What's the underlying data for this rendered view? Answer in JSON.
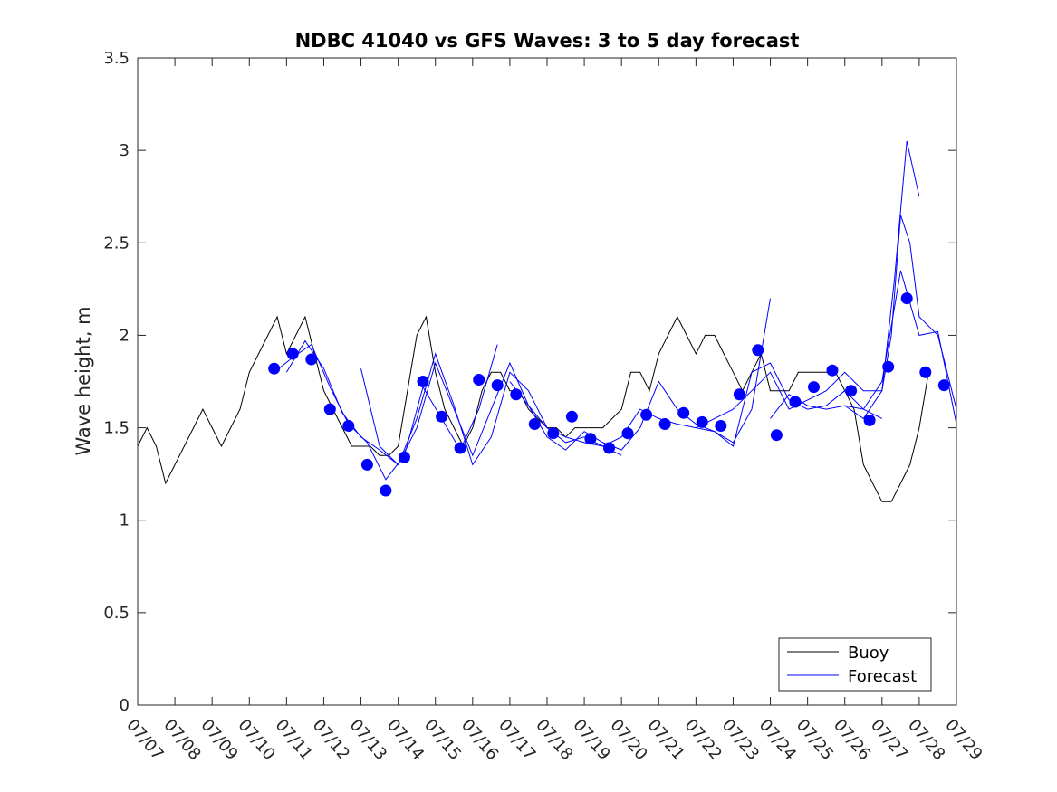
{
  "chart_data": {
    "type": "line",
    "title": "NDBC 41040 vs GFS Waves: 3 to 5 day forecast",
    "xlabel": "",
    "ylabel": "Wave height, m",
    "xlim": [
      "07/07",
      "07/29"
    ],
    "ylim": [
      0,
      3.5
    ],
    "x_ticks": [
      "07/07",
      "07/08",
      "07/09",
      "07/10",
      "07/11",
      "07/12",
      "07/13",
      "07/14",
      "07/15",
      "07/16",
      "07/17",
      "07/18",
      "07/19",
      "07/20",
      "07/21",
      "07/22",
      "07/23",
      "07/24",
      "07/25",
      "07/26",
      "07/27",
      "07/28",
      "07/29"
    ],
    "y_ticks": [
      "0",
      "0.5",
      "1",
      "1.5",
      "2",
      "2.5",
      "3",
      "3.5"
    ],
    "grid": false,
    "legend_position": "bottom-right",
    "series": [
      {
        "name": "Buoy",
        "color": "#000000",
        "x": [
          "07/07 00:00",
          "07/07 06:00",
          "07/07 12:00",
          "07/07 18:00",
          "07/08 00:00",
          "07/08 06:00",
          "07/08 12:00",
          "07/08 18:00",
          "07/09 00:00",
          "07/09 06:00",
          "07/09 12:00",
          "07/09 18:00",
          "07/10 00:00",
          "07/10 06:00",
          "07/10 12:00",
          "07/10 18:00",
          "07/11 00:00",
          "07/11 06:00",
          "07/11 12:00",
          "07/11 18:00",
          "07/12 00:00",
          "07/12 06:00",
          "07/12 12:00",
          "07/12 18:00",
          "07/13 00:00",
          "07/13 06:00",
          "07/13 12:00",
          "07/13 18:00",
          "07/14 00:00",
          "07/14 06:00",
          "07/14 12:00",
          "07/14 18:00",
          "07/15 00:00",
          "07/15 06:00",
          "07/15 12:00",
          "07/15 18:00",
          "07/16 00:00",
          "07/16 06:00",
          "07/16 12:00",
          "07/16 18:00",
          "07/17 00:00",
          "07/17 06:00",
          "07/17 12:00",
          "07/17 18:00",
          "07/18 00:00",
          "07/18 06:00",
          "07/18 12:00",
          "07/18 18:00",
          "07/19 00:00",
          "07/19 06:00",
          "07/19 12:00",
          "07/19 18:00",
          "07/20 00:00",
          "07/20 06:00",
          "07/20 12:00",
          "07/20 18:00",
          "07/21 00:00",
          "07/21 06:00",
          "07/21 12:00",
          "07/21 18:00",
          "07/22 00:00",
          "07/22 06:00",
          "07/22 12:00",
          "07/22 18:00",
          "07/23 00:00",
          "07/23 06:00",
          "07/23 12:00",
          "07/23 18:00",
          "07/24 00:00",
          "07/24 06:00",
          "07/24 12:00",
          "07/24 18:00",
          "07/25 00:00",
          "07/25 06:00",
          "07/25 12:00",
          "07/25 18:00",
          "07/26 00:00",
          "07/26 06:00",
          "07/26 12:00",
          "07/26 18:00",
          "07/27 00:00",
          "07/27 06:00",
          "07/27 12:00",
          "07/27 18:00",
          "07/28 00:00",
          "07/28 06:00"
        ],
        "values": [
          1.4,
          1.5,
          1.4,
          1.2,
          1.3,
          1.4,
          1.5,
          1.6,
          1.5,
          1.4,
          1.5,
          1.6,
          1.8,
          1.9,
          2.0,
          2.1,
          1.9,
          2.0,
          2.1,
          1.9,
          1.7,
          1.6,
          1.5,
          1.4,
          1.4,
          1.4,
          1.35,
          1.35,
          1.4,
          1.7,
          2.0,
          2.1,
          1.8,
          1.6,
          1.5,
          1.4,
          1.5,
          1.7,
          1.8,
          1.8,
          1.7,
          1.7,
          1.6,
          1.55,
          1.5,
          1.5,
          1.45,
          1.5,
          1.5,
          1.5,
          1.5,
          1.55,
          1.6,
          1.8,
          1.8,
          1.7,
          1.9,
          2.0,
          2.1,
          2.0,
          1.9,
          2.0,
          2.0,
          1.9,
          1.8,
          1.7,
          1.8,
          1.9,
          1.7,
          1.7,
          1.7,
          1.8,
          1.8,
          1.8,
          1.8,
          1.8,
          1.7,
          1.6,
          1.3,
          1.2,
          1.1,
          1.1,
          1.2,
          1.3,
          1.5,
          1.8
        ]
      },
      {
        "name": "Forecast",
        "color": "#0000ff",
        "runs": [
          {
            "x": [
              "07/10 16:00",
              "07/11 04:00",
              "07/11 16:00",
              "07/12 04:00",
              "07/12 16:00",
              "07/13 04:00",
              "07/13 16:00",
              "07/14 04:00",
              "07/14 16:00",
              "07/15 04:00",
              "07/15 16:00",
              "07/16 04:00",
              "07/16 16:00"
            ],
            "values": [
              1.8,
              1.88,
              1.95,
              1.72,
              1.52,
              1.42,
              1.22,
              1.35,
              1.72,
              1.55,
              1.38,
              1.6,
              1.95
            ]
          },
          {
            "x": [
              "07/11 00:00",
              "07/11 12:00",
              "07/12 00:00",
              "07/12 12:00",
              "07/13 00:00",
              "07/13 12:00",
              "07/14 00:00",
              "07/14 12:00",
              "07/15 00:00",
              "07/15 12:00",
              "07/16 00:00",
              "07/16 12:00",
              "07/17 00:00",
              "07/17 12:00",
              "07/18 00:00",
              "07/18 12:00",
              "07/19 00:00",
              "07/19 12:00",
              "07/20 00:00"
            ],
            "values": [
              1.8,
              1.97,
              1.82,
              1.58,
              1.45,
              1.38,
              1.3,
              1.55,
              1.9,
              1.62,
              1.3,
              1.45,
              1.8,
              1.7,
              1.5,
              1.42,
              1.45,
              1.4,
              1.35
            ]
          },
          {
            "x": [
              "07/13 00:00",
              "07/13 12:00",
              "07/14 00:00",
              "07/14 12:00",
              "07/15 00:00",
              "07/15 12:00",
              "07/16 00:00",
              "07/16 12:00",
              "07/17 00:00",
              "07/17 12:00",
              "07/18 00:00",
              "07/18 12:00",
              "07/19 00:00",
              "07/19 12:00",
              "07/20 00:00",
              "07/20 12:00",
              "07/21 00:00",
              "07/21 12:00",
              "07/22 00:00",
              "07/22 12:00",
              "07/23 00:00",
              "07/23 12:00",
              "07/24 00:00"
            ],
            "values": [
              1.82,
              1.4,
              1.3,
              1.5,
              1.85,
              1.6,
              1.35,
              1.6,
              1.85,
              1.62,
              1.45,
              1.38,
              1.48,
              1.42,
              1.38,
              1.5,
              1.75,
              1.6,
              1.52,
              1.48,
              1.42,
              1.6,
              2.2
            ]
          },
          {
            "x": [
              "07/17 00:00",
              "07/17 12:00",
              "07/18 00:00",
              "07/18 12:00",
              "07/19 00:00",
              "07/19 12:00",
              "07/20 00:00",
              "07/20 12:00",
              "07/21 00:00",
              "07/21 12:00",
              "07/22 00:00",
              "07/22 12:00",
              "07/23 00:00",
              "07/23 12:00",
              "07/24 00:00",
              "07/24 12:00",
              "07/25 00:00",
              "07/25 12:00",
              "07/26 00:00",
              "07/26 12:00",
              "07/27 00:00"
            ],
            "values": [
              1.75,
              1.62,
              1.5,
              1.45,
              1.42,
              1.4,
              1.45,
              1.6,
              1.55,
              1.52,
              1.5,
              1.48,
              1.4,
              1.8,
              1.85,
              1.65,
              1.6,
              1.62,
              1.7,
              1.6,
              1.55
            ]
          },
          {
            "x": [
              "07/22 00:00",
              "07/22 12:00",
              "07/23 00:00",
              "07/23 12:00",
              "07/24 00:00",
              "07/24 12:00",
              "07/25 00:00",
              "07/25 12:00",
              "07/26 00:00",
              "07/26 12:00",
              "07/27 00:00",
              "07/27 06:00",
              "07/27 12:00",
              "07/27 18:00",
              "07/28 00:00",
              "07/28 12:00",
              "07/29 00:00"
            ],
            "values": [
              1.5,
              1.55,
              1.6,
              1.7,
              1.8,
              1.6,
              1.65,
              1.7,
              1.8,
              1.7,
              1.7,
              2.0,
              2.65,
              2.5,
              2.1,
              2.0,
              1.6
            ]
          },
          {
            "x": [
              "07/24 00:00",
              "07/24 12:00",
              "07/25 00:00",
              "07/25 12:00",
              "07/26 00:00",
              "07/26 12:00",
              "07/27 00:00",
              "07/27 08:00",
              "07/27 16:00",
              "07/28 00:00"
            ],
            "values": [
              1.55,
              1.68,
              1.62,
              1.6,
              1.62,
              1.55,
              1.7,
              2.3,
              3.05,
              2.75
            ]
          },
          {
            "x": [
              "07/26 00:00",
              "07/26 12:00",
              "07/27 00:00",
              "07/27 12:00",
              "07/28 00:00",
              "07/28 12:00",
              "07/29 00:00"
            ],
            "values": [
              1.62,
              1.6,
              1.75,
              2.35,
              2.0,
              2.02,
              1.52
            ]
          }
        ]
      }
    ],
    "markers": {
      "color": "#0000ff",
      "x": [
        "07/10 16:00",
        "07/11 04:00",
        "07/11 16:00",
        "07/12 04:00",
        "07/12 16:00",
        "07/13 04:00",
        "07/13 16:00",
        "07/14 04:00",
        "07/14 16:00",
        "07/15 04:00",
        "07/15 16:00",
        "07/16 04:00",
        "07/16 16:00",
        "07/17 04:00",
        "07/17 16:00",
        "07/18 04:00",
        "07/18 16:00",
        "07/19 04:00",
        "07/19 16:00",
        "07/20 04:00",
        "07/20 16:00",
        "07/21 04:00",
        "07/21 16:00",
        "07/22 04:00",
        "07/22 16:00",
        "07/23 04:00",
        "07/23 16:00",
        "07/24 04:00",
        "07/24 16:00",
        "07/25 04:00",
        "07/25 16:00",
        "07/26 04:00",
        "07/26 16:00",
        "07/27 04:00",
        "07/27 16:00",
        "07/28 04:00",
        "07/28 16:00"
      ],
      "values": [
        1.82,
        1.9,
        1.87,
        1.6,
        1.51,
        1.3,
        1.16,
        1.34,
        1.75,
        1.56,
        1.39,
        1.76,
        1.73,
        1.68,
        1.52,
        1.47,
        1.56,
        1.44,
        1.39,
        1.47,
        1.57,
        1.52,
        1.58,
        1.53,
        1.51,
        1.68,
        1.92,
        1.46,
        1.64,
        1.72,
        1.81,
        1.7,
        1.54,
        1.83,
        2.2,
        1.8,
        1.73
      ]
    }
  }
}
